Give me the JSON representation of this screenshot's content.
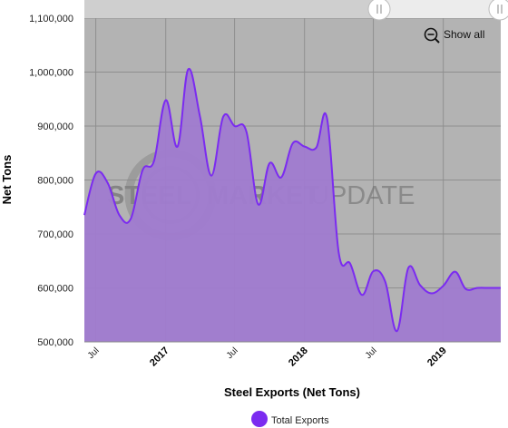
{
  "chart_data": {
    "type": "area",
    "xlabel": "Steel Exports (Net Tons)",
    "ylabel": "Net Tons",
    "ylim": [
      500000,
      1100000
    ],
    "yticks": [
      "500,000",
      "600,000",
      "700,000",
      "800,000",
      "900,000",
      "1,000,000",
      "1,100,000"
    ],
    "xticks": [
      {
        "label": "Jul",
        "date": "2016-07",
        "bold": false
      },
      {
        "label": "2017",
        "date": "2017-01",
        "bold": true
      },
      {
        "label": "Jul",
        "date": "2017-07",
        "bold": false
      },
      {
        "label": "2018",
        "date": "2018-01",
        "bold": true
      },
      {
        "label": "Jul",
        "date": "2018-07",
        "bold": false
      },
      {
        "label": "2019",
        "date": "2019-01",
        "bold": true
      }
    ],
    "x": [
      "2016-06",
      "2016-07",
      "2016-08",
      "2016-09",
      "2016-10",
      "2016-11",
      "2016-12",
      "2017-01",
      "2017-02",
      "2017-03",
      "2017-04",
      "2017-05",
      "2017-06",
      "2017-07",
      "2017-08",
      "2017-09",
      "2017-10",
      "2017-11",
      "2017-12",
      "2018-01",
      "2018-02",
      "2018-03",
      "2018-04",
      "2018-05",
      "2018-06",
      "2018-07",
      "2018-08",
      "2018-09",
      "2018-10",
      "2018-11",
      "2018-12",
      "2019-01",
      "2019-02",
      "2019-03",
      "2019-04",
      "2019-05",
      "2019-06"
    ],
    "series": [
      {
        "name": "Total Exports",
        "color": "#7b2bf0",
        "fill": "#a07bd0",
        "values": [
          735000,
          812000,
          795000,
          735000,
          728000,
          818000,
          835000,
          948000,
          862000,
          1005000,
          918000,
          808000,
          917000,
          900000,
          890000,
          755000,
          831000,
          805000,
          868000,
          862000,
          860000,
          915000,
          665000,
          645000,
          587000,
          631000,
          612000,
          520000,
          637000,
          605000,
          590000,
          604000,
          630000,
          598000,
          600000,
          600000,
          600000
        ]
      }
    ],
    "legend_position": "bottom-center",
    "grid": true,
    "plot_background": "#b3b3b3"
  },
  "controls": {
    "show_all_label": "Show all"
  },
  "watermark": {
    "word1": "STEEL",
    "word2": "MARKET",
    "word3": "UPDATE"
  }
}
